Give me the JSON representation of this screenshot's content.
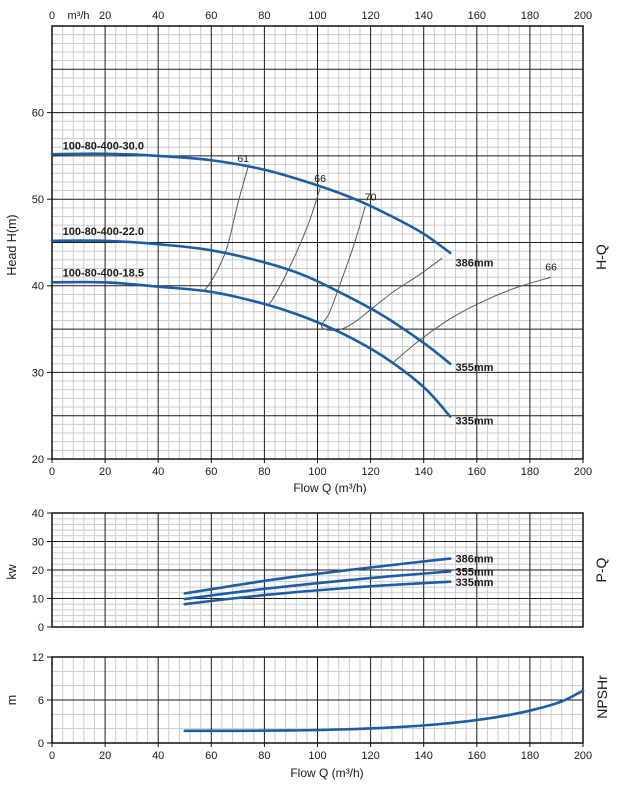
{
  "figure": {
    "background": "#ffffff"
  },
  "colors": {
    "curve_blue": "#1d5ca6",
    "efficiency_gray": "#5a5a5a",
    "grid_major": "#1b1b1b",
    "grid_minor": "#cccccc",
    "border": "#111111",
    "text": "#1a1a1a",
    "annotation_bold": "#141414",
    "annotation_gray": "#3c3c3c"
  },
  "chart_data": [
    {
      "id": "hq",
      "type": "line",
      "side_label": "H-Q",
      "ylabel": "Head H(m)",
      "xlabel": "Flow Q (m³/h)",
      "x_unit_label": "m³/h",
      "x_unit_at": 10,
      "xlim": [
        0,
        200
      ],
      "ylim": [
        20,
        70
      ],
      "x_major": 20,
      "x_minor": 4,
      "y_major": 5,
      "y_minor": 1,
      "x_ticks": [
        0,
        20,
        40,
        60,
        80,
        100,
        120,
        140,
        160,
        180,
        200
      ],
      "show_x_ticks_top": true,
      "show_x_ticks_bottom": true,
      "y_ticks": [
        60,
        50,
        40,
        30,
        20
      ],
      "series": [
        {
          "name": "386mm",
          "model": "100-80-400-30.0",
          "points": [
            [
              0,
              55.2
            ],
            [
              20,
              55.25
            ],
            [
              40,
              55.0
            ],
            [
              60,
              54.5
            ],
            [
              80,
              53.4
            ],
            [
              100,
              51.6
            ],
            [
              115,
              49.9
            ],
            [
              130,
              47.7
            ],
            [
              140,
              46.0
            ],
            [
              150,
              43.8
            ]
          ]
        },
        {
          "name": "355mm",
          "model": "100-80-400-22.0",
          "points": [
            [
              0,
              45.2
            ],
            [
              20,
              45.2
            ],
            [
              40,
              44.8
            ],
            [
              60,
              44.1
            ],
            [
              80,
              42.7
            ],
            [
              95,
              41.2
            ],
            [
              110,
              39.0
            ],
            [
              125,
              36.5
            ],
            [
              140,
              33.4
            ],
            [
              150,
              31.0
            ]
          ]
        },
        {
          "name": "335mm",
          "model": "100-80-400-18.5",
          "points": [
            [
              0,
              40.4
            ],
            [
              20,
              40.4
            ],
            [
              40,
              39.9
            ],
            [
              60,
              39.3
            ],
            [
              80,
              37.9
            ],
            [
              95,
              36.4
            ],
            [
              110,
              34.4
            ],
            [
              125,
              31.8
            ],
            [
              140,
              28.3
            ],
            [
              150,
              24.9
            ]
          ]
        }
      ],
      "efficiency_lines": [
        {
          "label": "61",
          "points": [
            [
              74,
              53.9
            ],
            [
              70,
              49.5
            ],
            [
              66,
              44.5
            ],
            [
              62,
              41.6
            ],
            [
              58.5,
              39.9
            ],
            [
              57,
              39.3
            ]
          ]
        },
        {
          "label": "66",
          "points": [
            [
              101,
              51.3
            ],
            [
              97,
              47.5
            ],
            [
              92,
              43.8
            ],
            [
              87,
              40.6
            ],
            [
              83,
              38.4
            ],
            [
              81.5,
              37.8
            ]
          ]
        },
        {
          "label": "70",
          "points": [
            [
              118,
              49.2
            ],
            [
              114,
              45.0
            ],
            [
              109,
              40.6
            ],
            [
              104.5,
              36.9
            ],
            [
              101.5,
              35.4
            ],
            [
              104,
              34.9
            ],
            [
              109,
              35.0
            ],
            [
              114,
              35.8
            ],
            [
              121,
              37.5
            ],
            [
              129,
              39.4
            ],
            [
              138,
              41.2
            ],
            [
              147,
              43.2
            ]
          ]
        },
        {
          "label": "66",
          "points": [
            [
              128,
              31.0
            ],
            [
              138,
              33.6
            ],
            [
              150,
              36.2
            ],
            [
              163,
              38.3
            ],
            [
              175,
              39.8
            ],
            [
              188,
              41.0
            ]
          ]
        }
      ],
      "annotations": [
        {
          "text": "100-80-400-30.0",
          "x": 4,
          "y": 56.2,
          "anchor": "start",
          "bold": true
        },
        {
          "text": "100-80-400-22.0",
          "x": 4,
          "y": 46.3,
          "anchor": "start",
          "bold": true
        },
        {
          "text": "100-80-400-18.5",
          "x": 4,
          "y": 41.5,
          "anchor": "start",
          "bold": true
        },
        {
          "text": "61",
          "x": 72,
          "y": 54.7,
          "anchor": "middle",
          "gray": true
        },
        {
          "text": "66",
          "x": 101,
          "y": 52.4,
          "anchor": "middle",
          "gray": true
        },
        {
          "text": "70",
          "x": 120,
          "y": 50.3,
          "anchor": "middle",
          "gray": true
        },
        {
          "text": "66",
          "x": 188,
          "y": 42.2,
          "anchor": "middle",
          "gray": true
        },
        {
          "text": "386mm",
          "x": 152,
          "y": 42.7,
          "anchor": "start",
          "bold": true
        },
        {
          "text": "355mm",
          "x": 152,
          "y": 30.6,
          "anchor": "start",
          "bold": true
        },
        {
          "text": "335mm",
          "x": 152,
          "y": 24.4,
          "anchor": "start",
          "bold": true
        }
      ]
    },
    {
      "id": "pq",
      "type": "line",
      "side_label": "P-Q",
      "ylabel": "kw",
      "xlabel": "",
      "xlim": [
        0,
        200
      ],
      "ylim": [
        0,
        40
      ],
      "x_major": 20,
      "x_minor": 4,
      "y_major": 10,
      "y_minor": 2,
      "x_ticks": [
        0,
        20,
        40,
        60,
        80,
        100,
        120,
        140,
        160,
        180,
        200
      ],
      "show_x_ticks_top": false,
      "show_x_ticks_bottom": false,
      "y_ticks": [
        40,
        30,
        20,
        10,
        0
      ],
      "series": [
        {
          "name": "386mm",
          "points": [
            [
              50,
              11.8
            ],
            [
              65,
              14.0
            ],
            [
              80,
              16.2
            ],
            [
              95,
              18.1
            ],
            [
              110,
              19.8
            ],
            [
              125,
              21.4
            ],
            [
              138,
              22.8
            ],
            [
              150,
              24.0
            ]
          ]
        },
        {
          "name": "355mm",
          "points": [
            [
              50,
              9.8
            ],
            [
              65,
              11.7
            ],
            [
              80,
              13.4
            ],
            [
              95,
              14.9
            ],
            [
              110,
              16.3
            ],
            [
              125,
              17.6
            ],
            [
              138,
              18.6
            ],
            [
              150,
              19.5
            ]
          ]
        },
        {
          "name": "335mm",
          "points": [
            [
              50,
              8.0
            ],
            [
              65,
              9.7
            ],
            [
              80,
              11.2
            ],
            [
              95,
              12.5
            ],
            [
              110,
              13.6
            ],
            [
              125,
              14.6
            ],
            [
              138,
              15.3
            ],
            [
              150,
              15.9
            ]
          ]
        }
      ],
      "efficiency_lines": [],
      "annotations": [
        {
          "text": "386mm",
          "x": 152,
          "y": 24.0,
          "anchor": "start",
          "bold": true
        },
        {
          "text": "355mm",
          "x": 152,
          "y": 19.5,
          "anchor": "start",
          "bold": true
        },
        {
          "text": "335mm",
          "x": 152,
          "y": 15.7,
          "anchor": "start",
          "bold": true
        }
      ]
    },
    {
      "id": "npshr",
      "type": "line",
      "side_label": "NPSHr",
      "ylabel": "m",
      "xlabel": "Flow Q (m³/h)",
      "xlim": [
        0,
        200
      ],
      "ylim": [
        0,
        12
      ],
      "x_major": 20,
      "x_minor": 4,
      "y_major": 6,
      "y_minor": 2,
      "x_ticks": [
        0,
        20,
        40,
        60,
        80,
        100,
        120,
        140,
        160,
        180,
        200
      ],
      "show_x_ticks_top": false,
      "show_x_ticks_bottom": true,
      "y_ticks": [
        12,
        6,
        0
      ],
      "series": [
        {
          "name": "NPSHr",
          "points": [
            [
              50,
              1.7
            ],
            [
              70,
              1.7
            ],
            [
              90,
              1.75
            ],
            [
              110,
              1.9
            ],
            [
              130,
              2.2
            ],
            [
              145,
              2.6
            ],
            [
              160,
              3.2
            ],
            [
              172,
              3.9
            ],
            [
              182,
              4.7
            ],
            [
              192,
              5.8
            ],
            [
              200,
              7.3
            ]
          ]
        }
      ],
      "efficiency_lines": [],
      "annotations": []
    }
  ]
}
